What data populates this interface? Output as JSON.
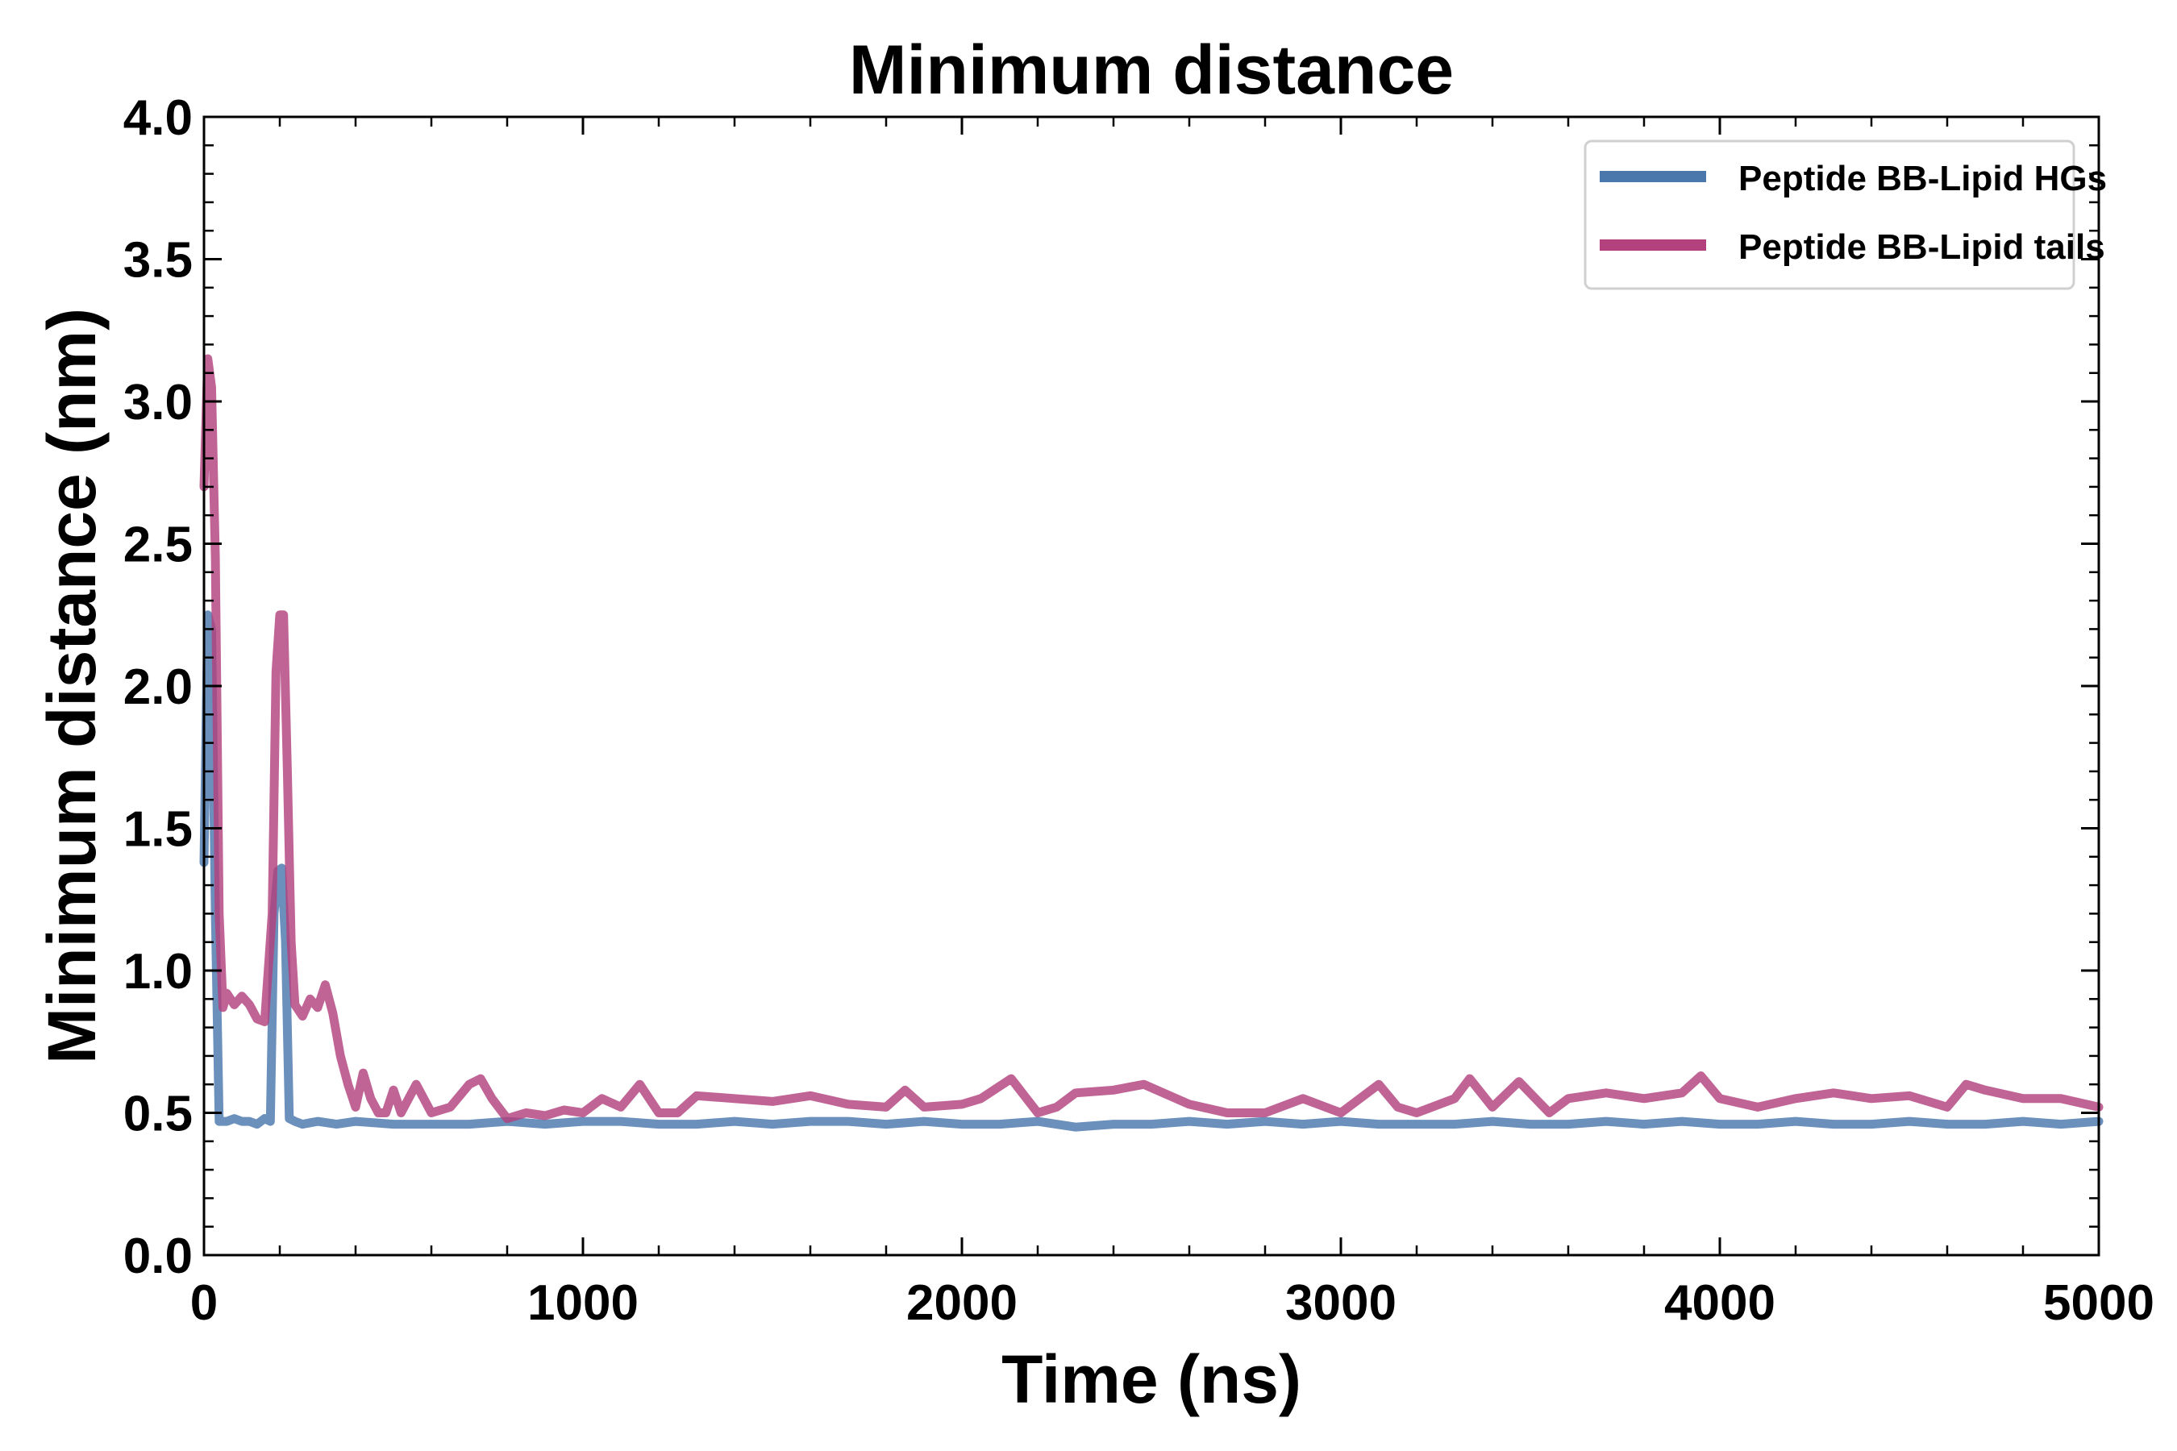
{
  "chart_data": {
    "type": "line",
    "title": "Minimum distance",
    "xlabel": "Time (ns)",
    "ylabel": "Minimum distance (nm)",
    "xlim": [
      0,
      5000
    ],
    "ylim": [
      0.0,
      4.0
    ],
    "xticks": [
      0,
      1000,
      2000,
      3000,
      4000,
      5000
    ],
    "xtick_labels": [
      "0",
      "1000",
      "2000",
      "3000",
      "4000",
      "5000"
    ],
    "yticks": [
      0.0,
      0.5,
      1.0,
      1.5,
      2.0,
      2.5,
      3.0,
      3.5,
      4.0
    ],
    "ytick_labels": [
      "0.0",
      "0.5",
      "1.0",
      "1.5",
      "2.0",
      "2.5",
      "3.0",
      "3.5",
      "4.0"
    ],
    "grid": false,
    "legend_position": "top-right",
    "series": [
      {
        "name": "Peptide BB-Lipid HGs",
        "color": "#4a78ad",
        "points": [
          [
            0,
            1.38
          ],
          [
            10,
            2.25
          ],
          [
            20,
            2.2
          ],
          [
            30,
            1.2
          ],
          [
            40,
            0.47
          ],
          [
            60,
            0.47
          ],
          [
            80,
            0.48
          ],
          [
            100,
            0.47
          ],
          [
            120,
            0.47
          ],
          [
            140,
            0.46
          ],
          [
            160,
            0.48
          ],
          [
            175,
            0.47
          ],
          [
            185,
            1.2
          ],
          [
            195,
            1.35
          ],
          [
            205,
            1.36
          ],
          [
            215,
            1.1
          ],
          [
            225,
            0.48
          ],
          [
            240,
            0.47
          ],
          [
            260,
            0.46
          ],
          [
            300,
            0.47
          ],
          [
            350,
            0.46
          ],
          [
            400,
            0.47
          ],
          [
            500,
            0.46
          ],
          [
            600,
            0.46
          ],
          [
            700,
            0.46
          ],
          [
            800,
            0.47
          ],
          [
            900,
            0.46
          ],
          [
            1000,
            0.47
          ],
          [
            1100,
            0.47
          ],
          [
            1200,
            0.46
          ],
          [
            1300,
            0.46
          ],
          [
            1400,
            0.47
          ],
          [
            1500,
            0.46
          ],
          [
            1600,
            0.47
          ],
          [
            1700,
            0.47
          ],
          [
            1800,
            0.46
          ],
          [
            1900,
            0.47
          ],
          [
            2000,
            0.46
          ],
          [
            2100,
            0.46
          ],
          [
            2200,
            0.47
          ],
          [
            2300,
            0.45
          ],
          [
            2400,
            0.46
          ],
          [
            2500,
            0.46
          ],
          [
            2600,
            0.47
          ],
          [
            2700,
            0.46
          ],
          [
            2800,
            0.47
          ],
          [
            2900,
            0.46
          ],
          [
            3000,
            0.47
          ],
          [
            3100,
            0.46
          ],
          [
            3200,
            0.46
          ],
          [
            3300,
            0.46
          ],
          [
            3400,
            0.47
          ],
          [
            3500,
            0.46
          ],
          [
            3600,
            0.46
          ],
          [
            3700,
            0.47
          ],
          [
            3800,
            0.46
          ],
          [
            3900,
            0.47
          ],
          [
            4000,
            0.46
          ],
          [
            4100,
            0.46
          ],
          [
            4200,
            0.47
          ],
          [
            4300,
            0.46
          ],
          [
            4400,
            0.46
          ],
          [
            4500,
            0.47
          ],
          [
            4600,
            0.46
          ],
          [
            4700,
            0.46
          ],
          [
            4800,
            0.47
          ],
          [
            4900,
            0.46
          ],
          [
            5000,
            0.47
          ]
        ]
      },
      {
        "name": "Peptide BB-Lipid tails",
        "color": "#b2417e",
        "points": [
          [
            0,
            2.7
          ],
          [
            10,
            3.15
          ],
          [
            20,
            3.05
          ],
          [
            30,
            2.45
          ],
          [
            40,
            1.2
          ],
          [
            50,
            0.87
          ],
          [
            60,
            0.92
          ],
          [
            80,
            0.88
          ],
          [
            100,
            0.91
          ],
          [
            120,
            0.88
          ],
          [
            140,
            0.83
          ],
          [
            160,
            0.82
          ],
          [
            180,
            1.2
          ],
          [
            190,
            2.05
          ],
          [
            200,
            2.25
          ],
          [
            210,
            2.25
          ],
          [
            220,
            1.7
          ],
          [
            230,
            1.1
          ],
          [
            240,
            0.88
          ],
          [
            260,
            0.84
          ],
          [
            280,
            0.9
          ],
          [
            300,
            0.87
          ],
          [
            320,
            0.95
          ],
          [
            340,
            0.85
          ],
          [
            360,
            0.7
          ],
          [
            380,
            0.6
          ],
          [
            400,
            0.52
          ],
          [
            420,
            0.64
          ],
          [
            440,
            0.55
          ],
          [
            460,
            0.5
          ],
          [
            480,
            0.5
          ],
          [
            500,
            0.58
          ],
          [
            520,
            0.5
          ],
          [
            560,
            0.6
          ],
          [
            600,
            0.5
          ],
          [
            650,
            0.52
          ],
          [
            700,
            0.6
          ],
          [
            730,
            0.62
          ],
          [
            760,
            0.55
          ],
          [
            800,
            0.48
          ],
          [
            850,
            0.5
          ],
          [
            900,
            0.49
          ],
          [
            950,
            0.51
          ],
          [
            1000,
            0.5
          ],
          [
            1050,
            0.55
          ],
          [
            1100,
            0.52
          ],
          [
            1150,
            0.6
          ],
          [
            1200,
            0.5
          ],
          [
            1250,
            0.5
          ],
          [
            1300,
            0.56
          ],
          [
            1400,
            0.55
          ],
          [
            1500,
            0.54
          ],
          [
            1600,
            0.56
          ],
          [
            1700,
            0.53
          ],
          [
            1800,
            0.52
          ],
          [
            1850,
            0.58
          ],
          [
            1900,
            0.52
          ],
          [
            2000,
            0.53
          ],
          [
            2050,
            0.55
          ],
          [
            2130,
            0.62
          ],
          [
            2200,
            0.5
          ],
          [
            2250,
            0.52
          ],
          [
            2300,
            0.57
          ],
          [
            2400,
            0.58
          ],
          [
            2480,
            0.6
          ],
          [
            2600,
            0.53
          ],
          [
            2700,
            0.5
          ],
          [
            2800,
            0.5
          ],
          [
            2900,
            0.55
          ],
          [
            3000,
            0.5
          ],
          [
            3100,
            0.6
          ],
          [
            3150,
            0.52
          ],
          [
            3200,
            0.5
          ],
          [
            3300,
            0.55
          ],
          [
            3340,
            0.62
          ],
          [
            3400,
            0.52
          ],
          [
            3470,
            0.61
          ],
          [
            3550,
            0.5
          ],
          [
            3600,
            0.55
          ],
          [
            3700,
            0.57
          ],
          [
            3800,
            0.55
          ],
          [
            3900,
            0.57
          ],
          [
            3950,
            0.63
          ],
          [
            4000,
            0.55
          ],
          [
            4100,
            0.52
          ],
          [
            4200,
            0.55
          ],
          [
            4300,
            0.57
          ],
          [
            4400,
            0.55
          ],
          [
            4500,
            0.56
          ],
          [
            4600,
            0.52
          ],
          [
            4650,
            0.6
          ],
          [
            4700,
            0.58
          ],
          [
            4800,
            0.55
          ],
          [
            4900,
            0.55
          ],
          [
            5000,
            0.52
          ]
        ]
      }
    ]
  }
}
